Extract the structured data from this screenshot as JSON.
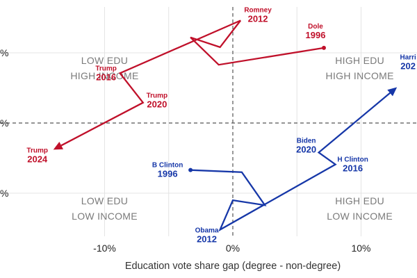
{
  "chart_data": {
    "type": "line",
    "title": "",
    "xlabel": "Education vote share gap (degree - non-degree)",
    "ylabel": "",
    "xlim": [
      -20,
      14.5
    ],
    "ylim": [
      -8,
      8
    ],
    "x_ticks": [
      {
        "value": -10,
        "label": "-10%"
      },
      {
        "value": 0,
        "label": "0%"
      },
      {
        "value": 10,
        "label": "10%"
      }
    ],
    "y_ticks": [
      {
        "value": 5,
        "label": "%"
      },
      {
        "value": 0,
        "label": "%"
      },
      {
        "value": -5,
        "label": "%"
      }
    ],
    "grid": true,
    "reference_lines": {
      "x": 0,
      "y": 0
    },
    "quadrant_labels": [
      {
        "id": "top-left",
        "x": -10,
        "y": 4.2,
        "lines": [
          "LOW EDU",
          "HIGH INCOME"
        ]
      },
      {
        "id": "top-right",
        "x": 9.9,
        "y": 4.2,
        "lines": [
          "HIGH EDU",
          "HIGH INCOME"
        ]
      },
      {
        "id": "bottom-left",
        "x": -10,
        "y": -5.8,
        "lines": [
          "LOW EDU",
          "LOW INCOME"
        ]
      },
      {
        "id": "bottom-right",
        "x": 9.9,
        "y": -5.8,
        "lines": [
          "HIGH EDU",
          "LOW INCOME"
        ]
      }
    ],
    "series": [
      {
        "id": "republican",
        "color": "#c0102a",
        "path": [
          {
            "x": 7.1,
            "y": 5.35
          },
          {
            "x": -1.1,
            "y": 4.15
          },
          {
            "x": -3.3,
            "y": 6.1
          },
          {
            "x": -1.0,
            "y": 5.4
          },
          {
            "x": 0.6,
            "y": 7.3
          },
          {
            "x": -8.8,
            "y": 3.55
          },
          {
            "x": -7.0,
            "y": 1.45
          },
          {
            "x": -14.0,
            "y": -1.9
          }
        ],
        "labels": [
          {
            "x": 7.1,
            "y": 5.35,
            "name": "Dole",
            "year": "1996"
          },
          {
            "x": 0.6,
            "y": 7.3,
            "name": "Romney",
            "year": "2012"
          },
          {
            "x": -8.8,
            "y": 3.55,
            "name": "Trump",
            "year": "2016"
          },
          {
            "x": -7.0,
            "y": 1.45,
            "name": "Trump",
            "year": "2020"
          },
          {
            "x": -14.0,
            "y": -1.9,
            "name": "Trump",
            "year": "2024"
          }
        ]
      },
      {
        "id": "democratic",
        "color": "#1637a8",
        "path": [
          {
            "x": -3.3,
            "y": -3.35
          },
          {
            "x": 0.7,
            "y": -3.5
          },
          {
            "x": 2.5,
            "y": -5.85
          },
          {
            "x": 0.0,
            "y": -5.5
          },
          {
            "x": -1.0,
            "y": -7.6
          },
          {
            "x": 8.0,
            "y": -2.95
          },
          {
            "x": 6.7,
            "y": -2.1
          },
          {
            "x": 12.8,
            "y": 2.55
          }
        ],
        "labels": [
          {
            "x": -3.3,
            "y": -3.35,
            "name": "B Clinton",
            "year": "1996"
          },
          {
            "x": -1.0,
            "y": -7.6,
            "name": "Obama",
            "year": "2012"
          },
          {
            "x": 8.0,
            "y": -2.95,
            "name": "H Clinton",
            "year": "2016"
          },
          {
            "x": 6.7,
            "y": -2.1,
            "name": "Biden",
            "year": "2020"
          },
          {
            "x": 12.8,
            "y": 2.55,
            "name": "Harri",
            "year": "202"
          }
        ]
      }
    ]
  }
}
